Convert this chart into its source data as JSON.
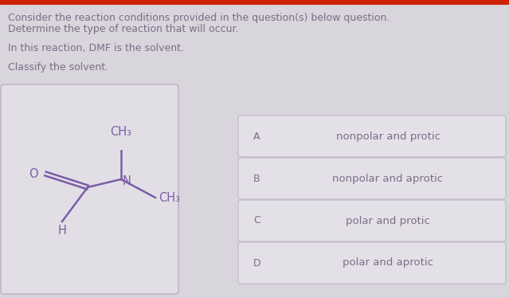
{
  "background_color": "#d8d5dc",
  "top_bar_color": "#cc2200",
  "top_bar_height": 6,
  "header_text_line1": "Consider the reaction conditions provided in the question(s) below question.",
  "header_text_line2": "Determine the type of reaction that will occur.",
  "subtext": "In this reaction, DMF is the solvent.",
  "classify_text": "Classify the solvent.",
  "mol_box_color": "#e2dee6",
  "mol_box_border": "#b8b0c0",
  "answer_box_color": "#e4e0e8",
  "answer_box_border": "#c0bac8",
  "answer_label_color": "#7a6e88",
  "answer_text_color": "#7a6e88",
  "header_text_color": "#7a6e88",
  "molecule_color": "#7b5ea7",
  "answers": [
    {
      "label": "A",
      "text": "nonpolar and protic"
    },
    {
      "label": "B",
      "text": "nonpolar and aprotic"
    },
    {
      "label": "C",
      "text": "polar and protic"
    },
    {
      "label": "D",
      "text": "polar and aprotic"
    }
  ],
  "title_fontsize": 9.0,
  "label_fontsize": 9.0,
  "answer_fontsize": 9.5,
  "mol_fontsize": 10.5
}
